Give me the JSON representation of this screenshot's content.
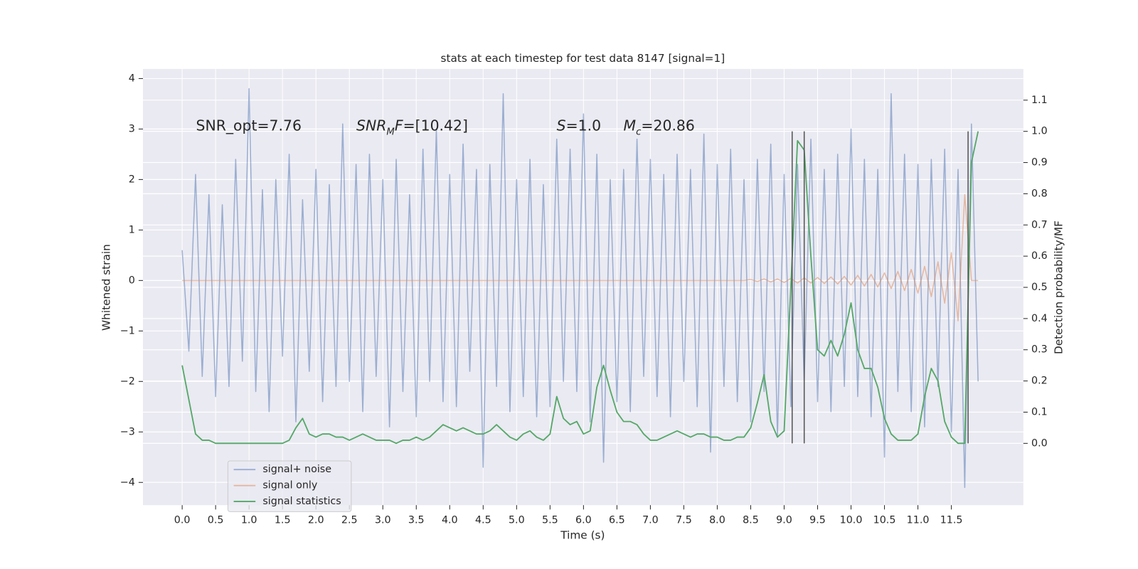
{
  "chart_data": {
    "type": "line",
    "title": "stats at each timestep for test data 8147 [signal=1]",
    "xlabel": "Time (s)",
    "ylabel": "Whitened strain",
    "y2label": "Detection probability/MF",
    "x": [
      0,
      0.1,
      0.2,
      0.3,
      0.4,
      0.5,
      0.6,
      0.7,
      0.8,
      0.9,
      1,
      1.1,
      1.2,
      1.3,
      1.4,
      1.5,
      1.6,
      1.7,
      1.8,
      1.9,
      2,
      2.1,
      2.2,
      2.3,
      2.4,
      2.5,
      2.6,
      2.7,
      2.8,
      2.9,
      3,
      3.1,
      3.2,
      3.3,
      3.4,
      3.5,
      3.6,
      3.7,
      3.8,
      3.9,
      4,
      4.1,
      4.2,
      4.3,
      4.4,
      4.5,
      4.6,
      4.7,
      4.8,
      4.9,
      5,
      5.1,
      5.2,
      5.3,
      5.4,
      5.5,
      5.6,
      5.7,
      5.8,
      5.9,
      6,
      6.1,
      6.2,
      6.3,
      6.4,
      6.5,
      6.6,
      6.7,
      6.8,
      6.9,
      7,
      7.1,
      7.2,
      7.3,
      7.4,
      7.5,
      7.6,
      7.7,
      7.8,
      7.9,
      8,
      8.1,
      8.2,
      8.3,
      8.4,
      8.5,
      8.6,
      8.7,
      8.8,
      8.9,
      9,
      9.1,
      9.2,
      9.3,
      9.4,
      9.5,
      9.6,
      9.7,
      9.8,
      9.9,
      10,
      10.1,
      10.2,
      10.3,
      10.4,
      10.5,
      10.6,
      10.7,
      10.8,
      10.9,
      11,
      11.1,
      11.2,
      11.3,
      11.4,
      11.5,
      11.6,
      11.7,
      11.8,
      11.9
    ],
    "series": [
      {
        "name": "signal+ noise",
        "color": "#4c72b0",
        "alpha": 0.5,
        "values": [
          0.6,
          -1.4,
          2.1,
          -1.9,
          1.7,
          -2.3,
          1.5,
          -2.1,
          2.4,
          -1.6,
          3.8,
          -2.2,
          1.8,
          -2.6,
          2.0,
          -1.5,
          2.5,
          -2.8,
          1.6,
          -1.8,
          2.2,
          -2.4,
          1.9,
          -2.1,
          3.1,
          -2.0,
          2.3,
          -2.6,
          2.5,
          -1.9,
          2.0,
          -2.9,
          2.4,
          -2.2,
          1.7,
          -2.7,
          2.6,
          -2.0,
          3.0,
          -2.4,
          2.1,
          -2.5,
          2.7,
          -1.8,
          2.2,
          -3.7,
          2.3,
          -2.1,
          3.7,
          -2.6,
          2.0,
          -2.3,
          2.4,
          -2.7,
          1.9,
          -2.5,
          2.8,
          -2.0,
          2.6,
          -2.2,
          3.3,
          -2.8,
          2.5,
          -3.6,
          2.0,
          -2.4,
          2.2,
          -2.6,
          2.8,
          -1.9,
          2.4,
          -2.3,
          2.1,
          -2.7,
          2.5,
          -2.0,
          2.2,
          -2.5,
          2.9,
          -3.4,
          2.3,
          -2.1,
          2.6,
          -2.4,
          2.0,
          -2.8,
          2.4,
          -2.2,
          2.7,
          -3.1,
          2.1,
          -2.5,
          2.3,
          -2.0,
          2.8,
          -2.4,
          2.2,
          -2.6,
          2.5,
          -2.1,
          3.0,
          -2.3,
          2.4,
          -2.7,
          2.2,
          -3.5,
          3.7,
          -2.2,
          2.5,
          -2.6,
          2.3,
          -2.9,
          2.4,
          -2.1,
          2.6,
          -3.0,
          2.2,
          -4.1,
          3.1,
          -2.0
        ]
      },
      {
        "name": "signal only",
        "color": "#dd8452",
        "alpha": 0.5,
        "values": [
          0,
          0,
          0,
          0,
          0,
          0,
          0,
          0,
          0,
          0,
          0,
          0,
          0,
          0,
          0,
          0,
          0,
          0,
          0,
          0,
          0,
          0,
          0,
          0,
          0,
          0,
          0,
          0,
          0,
          0,
          0,
          0,
          0,
          0,
          0,
          0,
          0,
          0,
          0,
          0,
          0,
          0,
          0,
          0,
          0,
          0,
          0,
          0,
          0,
          0,
          0,
          0,
          0,
          0,
          0,
          0,
          0,
          0,
          0,
          0,
          0,
          0,
          0,
          0,
          0,
          0,
          0,
          0,
          0,
          0,
          0,
          0,
          0,
          0,
          0,
          0,
          0,
          0,
          0,
          0,
          0,
          0,
          0,
          0,
          0,
          0.02,
          -0.02,
          0.03,
          -0.03,
          0.03,
          -0.04,
          0.04,
          -0.05,
          0.05,
          -0.05,
          0.06,
          -0.06,
          0.07,
          -0.07,
          0.08,
          -0.09,
          0.1,
          -0.11,
          0.12,
          -0.13,
          0.15,
          -0.16,
          0.18,
          -0.2,
          0.22,
          -0.25,
          0.28,
          -0.32,
          0.37,
          -0.45,
          0.55,
          -0.8,
          1.7,
          0,
          0
        ]
      },
      {
        "name": "signal statistics",
        "color": "#55a868",
        "alpha": 1,
        "axis": "y2",
        "values": [
          0.25,
          0.14,
          0.03,
          0.01,
          0.01,
          0,
          0,
          0,
          0,
          0,
          0,
          0,
          0,
          0,
          0,
          0,
          0.01,
          0.05,
          0.08,
          0.03,
          0.02,
          0.03,
          0.03,
          0.02,
          0.02,
          0.01,
          0.02,
          0.03,
          0.02,
          0.01,
          0.01,
          0.01,
          0,
          0.01,
          0.01,
          0.02,
          0.01,
          0.02,
          0.04,
          0.06,
          0.05,
          0.04,
          0.05,
          0.04,
          0.03,
          0.03,
          0.04,
          0.06,
          0.04,
          0.02,
          0.01,
          0.03,
          0.04,
          0.02,
          0.01,
          0.03,
          0.15,
          0.08,
          0.06,
          0.07,
          0.03,
          0.04,
          0.18,
          0.25,
          0.17,
          0.1,
          0.07,
          0.07,
          0.06,
          0.03,
          0.01,
          0.01,
          0.02,
          0.03,
          0.04,
          0.03,
          0.02,
          0.03,
          0.03,
          0.02,
          0.02,
          0.01,
          0.01,
          0.02,
          0.02,
          0.05,
          0.13,
          0.22,
          0.07,
          0.02,
          0.04,
          0.5,
          0.97,
          0.94,
          0.6,
          0.3,
          0.28,
          0.33,
          0.28,
          0.35,
          0.45,
          0.3,
          0.24,
          0.24,
          0.18,
          0.08,
          0.03,
          0.01,
          0.01,
          0.01,
          0.03,
          0.15,
          0.24,
          0.2,
          0.07,
          0.02,
          0,
          0,
          0.9,
          1.0
        ]
      }
    ],
    "vlines": {
      "x": [
        9.12,
        9.3,
        11.75
      ],
      "y2": [
        0,
        1
      ],
      "color": "#555555"
    },
    "annotations": [
      {
        "text": "SNR_opt=7.76"
      },
      {
        "italic": "SNR",
        "sub": "M",
        "italic2": "F",
        "plain": "=[10.42]"
      },
      {
        "italic": "S",
        "plain": "=1.0"
      },
      {
        "italic": "M",
        "sub": "c",
        "plain": "=20.86"
      }
    ],
    "xlim": [
      -0.586,
      12.576
    ],
    "ylim": [
      -4.45,
      4.19
    ],
    "y2lim": [
      -0.198,
      1.2
    ],
    "xticks": [
      {
        "value": 0,
        "label": "0.0"
      },
      {
        "value": 0.5,
        "label": "0.5"
      },
      {
        "value": 1,
        "label": "1.0"
      },
      {
        "value": 1.5,
        "label": "1.5"
      },
      {
        "value": 2,
        "label": "2.0"
      },
      {
        "value": 2.5,
        "label": "2.5"
      },
      {
        "value": 3,
        "label": "3.0"
      },
      {
        "value": 3.5,
        "label": "3.5"
      },
      {
        "value": 4,
        "label": "4.0"
      },
      {
        "value": 4.5,
        "label": "4.5"
      },
      {
        "value": 5,
        "label": "5.0"
      },
      {
        "value": 5.5,
        "label": "5.5"
      },
      {
        "value": 6,
        "label": "6.0"
      },
      {
        "value": 6.5,
        "label": "6.5"
      },
      {
        "value": 7,
        "label": "7.0"
      },
      {
        "value": 7.5,
        "label": "7.5"
      },
      {
        "value": 8,
        "label": "8.0"
      },
      {
        "value": 8.5,
        "label": "8.5"
      },
      {
        "value": 9,
        "label": "9.0"
      },
      {
        "value": 9.5,
        "label": "9.5"
      },
      {
        "value": 10,
        "label": "10.0"
      },
      {
        "value": 10.5,
        "label": "10.5"
      },
      {
        "value": 11,
        "label": "11.0"
      },
      {
        "value": 11.5,
        "label": "11.5"
      }
    ],
    "yticks": [
      {
        "value": -4,
        "label": "−4"
      },
      {
        "value": -3,
        "label": "−3"
      },
      {
        "value": -2,
        "label": "−2"
      },
      {
        "value": -1,
        "label": "−1"
      },
      0,
      1,
      2,
      3,
      4
    ],
    "y2ticks": [
      {
        "value": 0,
        "label": "0.0"
      },
      0.1,
      0.2,
      0.3,
      0.4,
      0.5,
      0.6,
      0.7,
      0.8,
      0.9,
      {
        "value": 1,
        "label": "1.0"
      },
      1.1
    ],
    "grid": true,
    "legend": "lower left"
  }
}
